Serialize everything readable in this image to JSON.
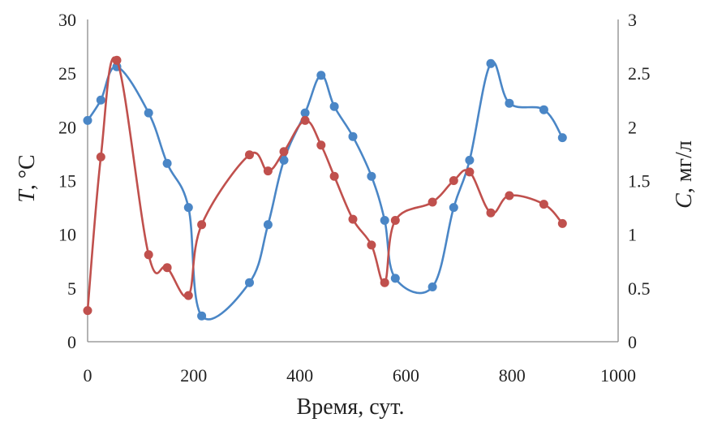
{
  "chart_data": {
    "type": "line",
    "xlabel": "Время, сут.",
    "ylabel_left": {
      "var": "T",
      "unit": ", °C"
    },
    "ylabel_right": {
      "var": "C",
      "unit": ", мг/л"
    },
    "xlim": [
      0,
      1000
    ],
    "ylim_left": [
      0,
      30
    ],
    "ylim_right": [
      0,
      3
    ],
    "x_ticks": [
      "0",
      "200",
      "400",
      "600",
      "800",
      "1000"
    ],
    "y_left_ticks": [
      "0",
      "5",
      "10",
      "15",
      "20",
      "25",
      "30"
    ],
    "y_right_ticks": [
      "0",
      "0.5",
      "1",
      "1.5",
      "2",
      "2.5",
      "3"
    ],
    "grid": false,
    "legend": "none",
    "series": [
      {
        "axis": "left",
        "color": "#4a86c6",
        "x": [
          0,
          25,
          55,
          115,
          150,
          190,
          215,
          305,
          340,
          370,
          410,
          440,
          465,
          500,
          535,
          560,
          580,
          650,
          690,
          720,
          760,
          795,
          860,
          895
        ],
        "y": [
          20.6,
          22.5,
          25.6,
          21.3,
          16.6,
          12.5,
          2.4,
          5.5,
          10.9,
          16.9,
          21.3,
          24.8,
          21.9,
          19.1,
          15.4,
          11.3,
          5.9,
          5.1,
          12.5,
          16.9,
          25.9,
          22.2,
          21.6,
          19.0
        ]
      },
      {
        "axis": "right",
        "color": "#c0504d",
        "x": [
          0,
          25,
          55,
          115,
          150,
          190,
          215,
          305,
          340,
          370,
          410,
          440,
          465,
          500,
          535,
          560,
          580,
          650,
          690,
          720,
          760,
          795,
          860,
          895
        ],
        "y": [
          0.29,
          1.72,
          2.62,
          0.81,
          0.69,
          0.43,
          1.09,
          1.74,
          1.59,
          1.77,
          2.06,
          1.83,
          1.54,
          1.14,
          0.9,
          0.55,
          1.13,
          1.3,
          1.5,
          1.58,
          1.2,
          1.36,
          1.28,
          1.1
        ]
      }
    ]
  }
}
